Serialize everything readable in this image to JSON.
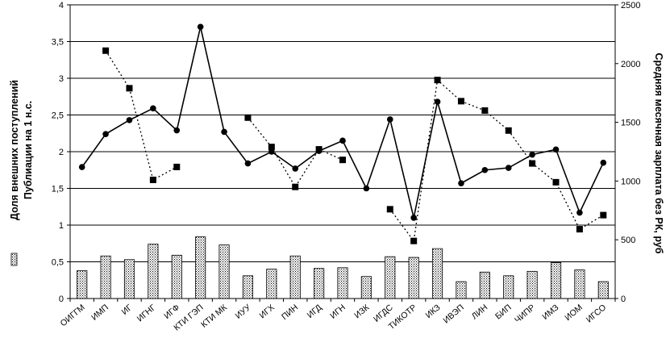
{
  "chart_data": {
    "type": "bar",
    "title": "",
    "categories": [
      "ОИГГМ",
      "ИМП",
      "ИГ",
      "ИГНГ",
      "ИГФ",
      "КТИ ГЭП",
      "КТИ МК",
      "ИУУ",
      "ИГХ",
      "ПИН",
      "ИГД",
      "ИГН",
      "ИЗК",
      "ИГДС",
      "ТИКОТР",
      "ИКЗ",
      "ИВЭП",
      "ЛИН",
      "БИП",
      "ЧИПР",
      "ИМЗ",
      "ИОМ",
      "ИГСО"
    ],
    "series": [
      {
        "kind": "bar",
        "axis": "left",
        "values": [
          0.38,
          0.58,
          0.53,
          0.74,
          0.59,
          0.84,
          0.73,
          0.31,
          0.4,
          0.58,
          0.41,
          0.42,
          0.3,
          0.57,
          0.56,
          0.68,
          0.23,
          0.36,
          0.31,
          0.37,
          0.49,
          0.39,
          0.23
        ]
      },
      {
        "kind": "line-solid-circle",
        "axis": "left",
        "values": [
          1.79,
          2.24,
          2.43,
          2.59,
          2.29,
          3.7,
          2.27,
          1.84,
          2.0,
          1.77,
          2.01,
          2.15,
          1.5,
          2.44,
          1.1,
          2.68,
          1.57,
          1.75,
          1.78,
          1.96,
          2.03,
          1.17,
          1.85
        ]
      },
      {
        "kind": "line-dotted-square",
        "axis": "right",
        "values": [
          null,
          2110,
          1790,
          1010,
          1120,
          null,
          null,
          1540,
          1290,
          950,
          1270,
          1180,
          null,
          760,
          490,
          1860,
          1680,
          1600,
          1430,
          1150,
          990,
          590,
          710
        ]
      }
    ],
    "y_left": {
      "title": "Доля внешних поступлений\nПублиации на 1 н.с.",
      "min": 0,
      "max": 4,
      "step": 0.5,
      "ticks": [
        "0",
        "0,5",
        "1",
        "1,5",
        "2",
        "2,5",
        "3",
        "3,5",
        "4"
      ]
    },
    "y_right": {
      "title": "Средняя месячная зарплата без РК, руб",
      "min": 0,
      "max": 2500,
      "step": 500,
      "ticks": [
        "0",
        "500",
        "1000",
        "1500",
        "2000",
        "2500"
      ]
    },
    "grid": true,
    "legend": "left"
  }
}
